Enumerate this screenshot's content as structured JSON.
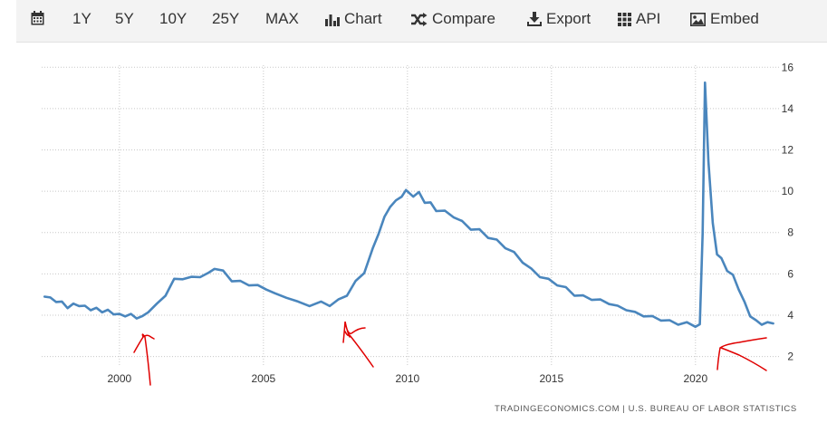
{
  "toolbar": {
    "calendar_icon": "calendar-icon",
    "range_1y": "1Y",
    "range_5y": "5Y",
    "range_10y": "10Y",
    "range_25y": "25Y",
    "range_max": "MAX",
    "chart": {
      "icon": "bar-chart-icon",
      "label": "Chart"
    },
    "compare": {
      "icon": "shuffle-icon",
      "label": "Compare"
    },
    "export": {
      "icon": "download-icon",
      "label": "Export"
    },
    "api": {
      "icon": "grid-icon",
      "label": "API"
    },
    "embed": {
      "icon": "image-icon",
      "label": "Embed"
    }
  },
  "source": "TRADINGECONOMICS.COM | U.S. BUREAU OF LABOR STATISTICS",
  "colors": {
    "line": "#4a86bd",
    "annotation": "#e00000",
    "grid": "#c8c8c8"
  },
  "chart_data": {
    "type": "line",
    "title": "",
    "xlabel": "",
    "ylabel": "",
    "x_ticks": [
      "2000",
      "2005",
      "2010",
      "2015",
      "2020"
    ],
    "y_ticks": [
      "2",
      "4",
      "6",
      "8",
      "10",
      "12",
      "14",
      "16"
    ],
    "xlim": [
      1997.3,
      2022.9
    ],
    "ylim": [
      1.5,
      16.1
    ],
    "y_axis_side": "right",
    "grid": "dotted",
    "legend": "none",
    "annotations": "hand-drawn red marks near 2001, 2008 and 2020",
    "series": [
      {
        "x": [
          1997.4,
          1997.6,
          1997.8,
          1998.0,
          1998.2,
          1998.4,
          1998.6,
          1998.8,
          1999.0,
          1999.2,
          1999.4,
          1999.6,
          1999.8,
          2000.0,
          2000.2,
          2000.4,
          2000.6,
          2000.8,
          2001.0,
          2001.3,
          2001.6,
          2001.9,
          2002.2,
          2002.5,
          2002.8,
          2003.1,
          2003.3,
          2003.6,
          2003.9,
          2004.2,
          2004.5,
          2004.8,
          2005.1,
          2005.4,
          2005.8,
          2006.2,
          2006.6,
          2007.0,
          2007.3,
          2007.6,
          2007.9,
          2008.2,
          2008.5,
          2008.8,
          2009.0,
          2009.2,
          2009.4,
          2009.6,
          2009.8,
          2009.95,
          2010.2,
          2010.4,
          2010.6,
          2010.8,
          2011.0,
          2011.3,
          2011.6,
          2011.9,
          2012.2,
          2012.5,
          2012.8,
          2013.1,
          2013.4,
          2013.7,
          2014.0,
          2014.3,
          2014.6,
          2014.9,
          2015.2,
          2015.5,
          2015.8,
          2016.1,
          2016.4,
          2016.7,
          2017.0,
          2017.3,
          2017.6,
          2017.9,
          2018.2,
          2018.5,
          2018.8,
          2019.1,
          2019.4,
          2019.7,
          2020.0,
          2020.15,
          2020.25,
          2020.33,
          2020.45,
          2020.6,
          2020.75,
          2020.9,
          2021.1,
          2021.3,
          2021.5,
          2021.7,
          2021.9,
          2022.1,
          2022.3,
          2022.5,
          2022.7
        ],
        "y": [
          4.9,
          4.8,
          4.7,
          4.6,
          4.4,
          4.5,
          4.5,
          4.4,
          4.3,
          4.3,
          4.2,
          4.2,
          4.1,
          4.0,
          4.0,
          4.0,
          3.9,
          3.9,
          4.2,
          4.5,
          5.0,
          5.7,
          5.8,
          5.8,
          5.9,
          6.0,
          6.3,
          6.1,
          5.7,
          5.6,
          5.5,
          5.4,
          5.3,
          5.0,
          4.9,
          4.6,
          4.5,
          4.6,
          4.5,
          4.7,
          5.0,
          5.6,
          6.1,
          7.2,
          8.0,
          8.7,
          9.3,
          9.5,
          9.8,
          10.0,
          9.8,
          9.9,
          9.5,
          9.4,
          9.1,
          9.0,
          8.8,
          8.5,
          8.2,
          8.1,
          7.8,
          7.6,
          7.3,
          7.0,
          6.6,
          6.2,
          5.9,
          5.7,
          5.5,
          5.3,
          5.0,
          4.9,
          4.8,
          4.7,
          4.6,
          4.4,
          4.3,
          4.1,
          4.0,
          3.9,
          3.8,
          3.7,
          3.6,
          3.6,
          3.5,
          3.5,
          8.0,
          15.2,
          11.5,
          8.4,
          7.0,
          6.7,
          6.2,
          5.9,
          5.3,
          4.6,
          4.0,
          3.7,
          3.6,
          3.6,
          3.6
        ]
      }
    ]
  }
}
